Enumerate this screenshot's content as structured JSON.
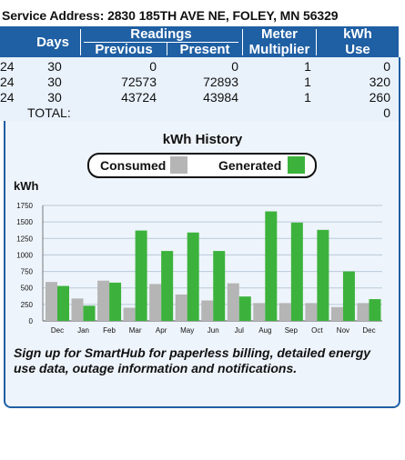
{
  "service_address": "Service Address: 2830 185TH AVE NE, FOLEY, MN 56329",
  "table": {
    "headers": {
      "days": "Days",
      "readings": "Readings",
      "previous": "Previous",
      "present": "Present",
      "meter": "Meter",
      "multiplier": "Multiplier",
      "kwh": "kWh",
      "use": "Use"
    },
    "rows": [
      {
        "date_fragment": "24",
        "days": "30",
        "previous": "0",
        "present": "0",
        "multiplier": "1",
        "use": "0"
      },
      {
        "date_fragment": "24",
        "days": "30",
        "previous": "72573",
        "present": "72893",
        "multiplier": "1",
        "use": "320"
      },
      {
        "date_fragment": "24",
        "days": "30",
        "previous": "43724",
        "present": "43984",
        "multiplier": "1",
        "use": "260"
      }
    ],
    "total_label": "TOTAL:",
    "total_value": "0"
  },
  "chart_data": {
    "type": "bar",
    "title": "kWh History",
    "ylabel": "kWh",
    "ylim": [
      0,
      1750
    ],
    "yticks": [
      "0",
      "250",
      "500",
      "750",
      "1000",
      "1250",
      "1500",
      "1750"
    ],
    "grid": true,
    "categories": [
      "Dec",
      "Jan",
      "Feb",
      "Mar",
      "Apr",
      "May",
      "Jun",
      "Jul",
      "Aug",
      "Sep",
      "Oct",
      "Nov",
      "Dec"
    ],
    "series": [
      {
        "name": "Consumed",
        "color": "#b5b5b5",
        "values": [
          590,
          340,
          610,
          200,
          560,
          400,
          310,
          570,
          270,
          270,
          270,
          210,
          270
        ]
      },
      {
        "name": "Generated",
        "color": "#3cb23c",
        "values": [
          530,
          230,
          580,
          1370,
          1060,
          1340,
          1060,
          370,
          1660,
          1490,
          1380,
          750,
          330
        ]
      }
    ]
  },
  "footer_note": "Sign up for SmartHub for paperless billing, detailed energy use data, outage information and notifications."
}
